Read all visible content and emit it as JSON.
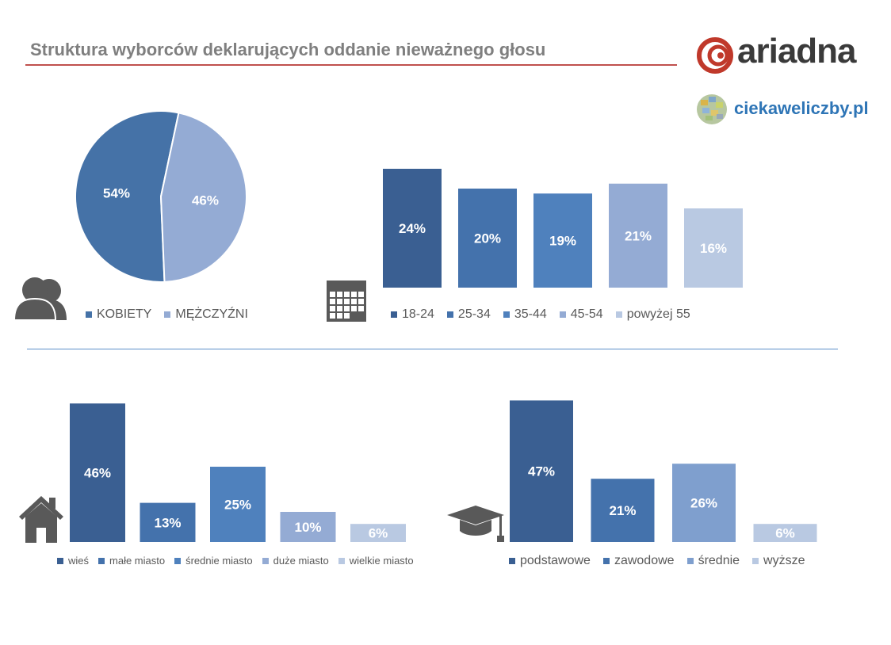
{
  "header": {
    "title": "Struktura wyborców deklarujących oddanie nieważnego głosu",
    "brand": "ariadna",
    "site": "ciekaweliczby.pl"
  },
  "icons": {
    "gender": "people-icon",
    "age": "calendar-icon",
    "place": "house-icon",
    "education": "graduation-cap-icon"
  },
  "chart_data": [
    {
      "type": "pie",
      "categories": [
        "KOBIETY",
        "MĘŻCZYŹNI"
      ],
      "values": [
        54,
        46
      ],
      "labels": [
        "54%",
        "46%"
      ],
      "colors": [
        "#4572a7",
        "#94abd4"
      ],
      "legend": "bottom"
    },
    {
      "type": "bar",
      "categories": [
        "18-24",
        "25-34",
        "35-44",
        "45-54",
        "powyżej 55"
      ],
      "values": [
        24,
        20,
        19,
        21,
        16
      ],
      "labels": [
        "24%",
        "20%",
        "19%",
        "21%",
        "16%"
      ],
      "colors": [
        "#3a5f92",
        "#4472ac",
        "#4f81bd",
        "#94abd4",
        "#b9c9e2"
      ],
      "legend": "bottom",
      "grid": false
    },
    {
      "type": "bar",
      "categories": [
        "wieś",
        "małe miasto",
        "średnie miasto",
        "duże miasto",
        "wielkie miasto"
      ],
      "values": [
        46,
        13,
        25,
        10,
        6
      ],
      "labels": [
        "46%",
        "13%",
        "25%",
        "10%",
        "6%"
      ],
      "colors": [
        "#3a5f92",
        "#4472ac",
        "#4f81bd",
        "#94abd4",
        "#b9c9e2"
      ],
      "legend": "bottom",
      "grid": false
    },
    {
      "type": "bar",
      "categories": [
        "podstawowe",
        "zawodowe",
        "średnie",
        "wyższe"
      ],
      "values": [
        47,
        21,
        26,
        6
      ],
      "labels": [
        "47%",
        "21%",
        "26%",
        "6%"
      ],
      "colors": [
        "#3a5f92",
        "#4472ac",
        "#7f9fce",
        "#b9c9e2"
      ],
      "legend": "bottom",
      "grid": false
    }
  ]
}
